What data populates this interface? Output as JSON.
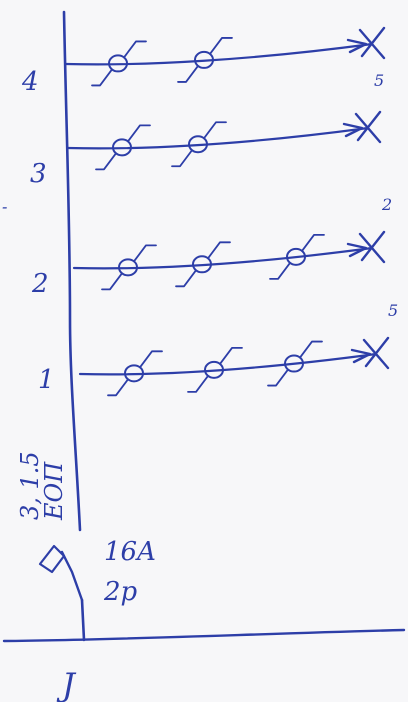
{
  "diagram": {
    "ink_color": "#2d3ea8",
    "paper_color": "#f7f7f9",
    "circuits": [
      {
        "label": "4",
        "lamps": 2,
        "end_label": ""
      },
      {
        "label": "3",
        "lamps": 2,
        "end_label": "5"
      },
      {
        "label": "2",
        "lamps": 3,
        "end_label": "2"
      },
      {
        "label": "1",
        "lamps": 3,
        "end_label": "5"
      }
    ],
    "cable_label_1": "3, 1.5",
    "cable_label_2": "ЕОП",
    "breaker_label_1": "16A",
    "breaker_label_2": "2p",
    "bottom_label": "J",
    "side_mark": "-"
  }
}
